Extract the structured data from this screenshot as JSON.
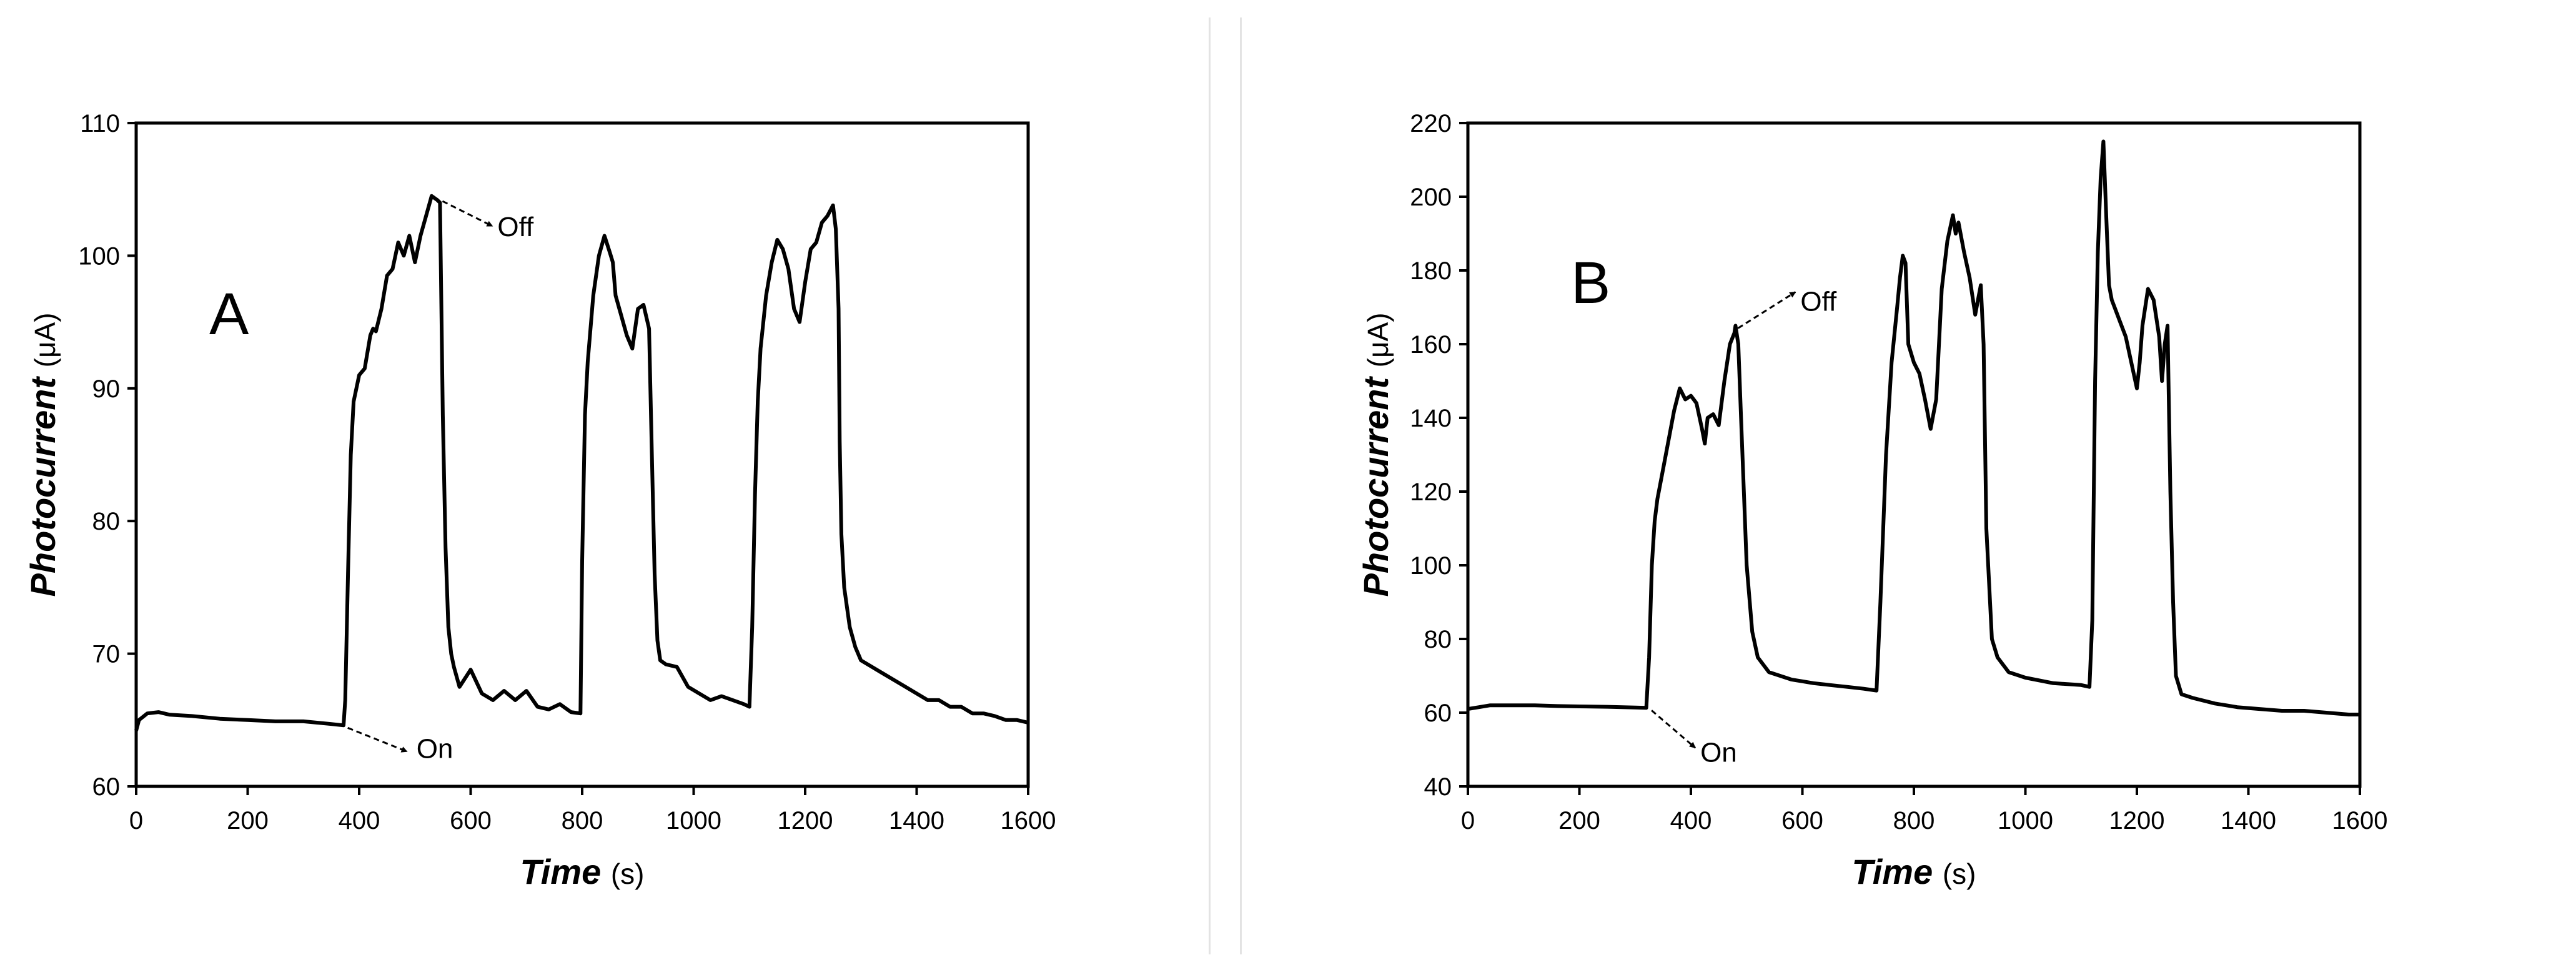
{
  "figure": {
    "panels": [
      "A",
      "B"
    ]
  },
  "chart_data": [
    {
      "type": "line",
      "panel_label": "A",
      "title": "",
      "xlabel": "Time",
      "xlabel_unit": "(s)",
      "ylabel": "Photocurrent",
      "ylabel_unit": "(μA)",
      "xlim": [
        0,
        1600
      ],
      "ylim": [
        60,
        110
      ],
      "xticks": [
        0,
        200,
        400,
        600,
        800,
        1000,
        1200,
        1400,
        1600
      ],
      "yticks": [
        60,
        70,
        80,
        90,
        100,
        110
      ],
      "grid": false,
      "series": [
        {
          "name": "photocurrent",
          "color": "#000000",
          "x": [
            0,
            5,
            20,
            40,
            60,
            100,
            150,
            200,
            250,
            300,
            350,
            372,
            375,
            380,
            385,
            390,
            400,
            410,
            420,
            425,
            430,
            440,
            450,
            460,
            470,
            480,
            490,
            500,
            510,
            520,
            530,
            540,
            545,
            550,
            555,
            560,
            565,
            570,
            580,
            600,
            620,
            640,
            660,
            680,
            700,
            720,
            740,
            760,
            780,
            797,
            800,
            805,
            810,
            820,
            830,
            840,
            850,
            855,
            860,
            870,
            880,
            890,
            900,
            910,
            920,
            925,
            930,
            935,
            940,
            950,
            970,
            990,
            1010,
            1030,
            1050,
            1070,
            1090,
            1100,
            1105,
            1110,
            1115,
            1120,
            1130,
            1140,
            1150,
            1160,
            1170,
            1180,
            1190,
            1200,
            1210,
            1220,
            1230,
            1240,
            1250,
            1255,
            1260,
            1262,
            1265,
            1270,
            1280,
            1290,
            1300,
            1320,
            1340,
            1360,
            1380,
            1400,
            1420,
            1440,
            1460,
            1480,
            1500,
            1520,
            1540,
            1560,
            1580,
            1600
          ],
          "y": [
            64.2,
            65.0,
            65.5,
            65.6,
            65.4,
            65.3,
            65.1,
            65.0,
            64.9,
            64.9,
            64.7,
            64.6,
            66.5,
            76.0,
            85.0,
            89.0,
            91.0,
            91.5,
            94.0,
            94.5,
            94.3,
            96.0,
            98.5,
            99.0,
            101.0,
            100.0,
            101.5,
            99.5,
            101.5,
            103.0,
            104.5,
            104.2,
            104.0,
            88.0,
            78.0,
            72.0,
            70.0,
            69.0,
            67.5,
            68.8,
            67.0,
            66.5,
            67.2,
            66.5,
            67.2,
            66.0,
            65.8,
            66.2,
            65.6,
            65.5,
            77.0,
            88.0,
            92.0,
            97.0,
            100.0,
            101.5,
            100.2,
            99.5,
            97.0,
            95.5,
            94.0,
            93.0,
            96.0,
            96.3,
            94.5,
            85.0,
            76.0,
            71.0,
            69.5,
            69.2,
            69.0,
            67.5,
            67.0,
            66.5,
            66.8,
            66.5,
            66.2,
            66.0,
            72.0,
            82.0,
            89.0,
            93.0,
            97.0,
            99.5,
            101.2,
            100.5,
            99.0,
            96.0,
            95.0,
            98.0,
            100.5,
            101.0,
            102.5,
            103.0,
            103.8,
            102.0,
            96.0,
            86.0,
            79.0,
            75.0,
            72.0,
            70.5,
            69.5,
            69.0,
            68.5,
            68.0,
            67.5,
            67.0,
            66.5,
            66.5,
            66.0,
            66.0,
            65.5,
            65.5,
            65.3,
            65.0,
            65.0,
            64.8
          ]
        }
      ],
      "annotations": [
        {
          "text": "On",
          "x": 375,
          "y": 64.6
        },
        {
          "text": "Off",
          "x": 545,
          "y": 104.3
        }
      ]
    },
    {
      "type": "line",
      "panel_label": "B",
      "title": "",
      "xlabel": "Time",
      "xlabel_unit": "(s)",
      "ylabel": "Photocurrent",
      "ylabel_unit": "(μA)",
      "xlim": [
        0,
        1600
      ],
      "ylim": [
        40,
        220
      ],
      "xticks": [
        0,
        200,
        400,
        600,
        800,
        1000,
        1200,
        1400,
        1600
      ],
      "yticks": [
        40,
        60,
        80,
        100,
        120,
        140,
        160,
        180,
        200,
        220
      ],
      "grid": false,
      "series": [
        {
          "name": "photocurrent",
          "color": "#000000",
          "x": [
            0,
            20,
            40,
            80,
            120,
            160,
            200,
            250,
            300,
            320,
            325,
            330,
            335,
            340,
            350,
            360,
            370,
            380,
            390,
            400,
            410,
            420,
            425,
            430,
            440,
            450,
            460,
            470,
            478,
            480,
            485,
            490,
            500,
            510,
            520,
            540,
            560,
            580,
            600,
            620,
            650,
            680,
            710,
            733,
            740,
            750,
            760,
            770,
            775,
            780,
            785,
            790,
            800,
            810,
            820,
            830,
            840,
            850,
            860,
            870,
            875,
            880,
            890,
            900,
            910,
            915,
            920,
            925,
            930,
            940,
            950,
            970,
            1000,
            1050,
            1100,
            1115,
            1120,
            1125,
            1130,
            1135,
            1140,
            1145,
            1150,
            1155,
            1160,
            1170,
            1180,
            1190,
            1200,
            1205,
            1210,
            1220,
            1230,
            1240,
            1245,
            1250,
            1255,
            1260,
            1265,
            1270,
            1280,
            1300,
            1340,
            1380,
            1420,
            1460,
            1500,
            1540,
            1580,
            1600
          ],
          "y": [
            61,
            61.5,
            62,
            62,
            62,
            61.8,
            61.7,
            61.6,
            61.4,
            61.3,
            75,
            100,
            112,
            118,
            126,
            134,
            142,
            148,
            145,
            146,
            144,
            137,
            133,
            140,
            141,
            138,
            150,
            160,
            163,
            165,
            160,
            140,
            100,
            82,
            75,
            71,
            70,
            69,
            68.5,
            68,
            67.5,
            67,
            66.5,
            66,
            90,
            130,
            155,
            170,
            178,
            184,
            182,
            160,
            155,
            152,
            145,
            137,
            145,
            175,
            188,
            195,
            190,
            193,
            185,
            178,
            168,
            172,
            176,
            160,
            110,
            80,
            75,
            71,
            69.5,
            68,
            67.5,
            67,
            85,
            150,
            185,
            205,
            215,
            195,
            176,
            172,
            170,
            166,
            162,
            155,
            148,
            155,
            165,
            175,
            172,
            162,
            150,
            160,
            165,
            120,
            90,
            70,
            65,
            64,
            62.5,
            61.5,
            61,
            60.5,
            60.5,
            60,
            59.5,
            59.5
          ]
        }
      ],
      "annotations": [
        {
          "text": "On",
          "x": 325,
          "y": 61.3
        },
        {
          "text": "Off",
          "x": 480,
          "y": 165
        }
      ]
    }
  ]
}
